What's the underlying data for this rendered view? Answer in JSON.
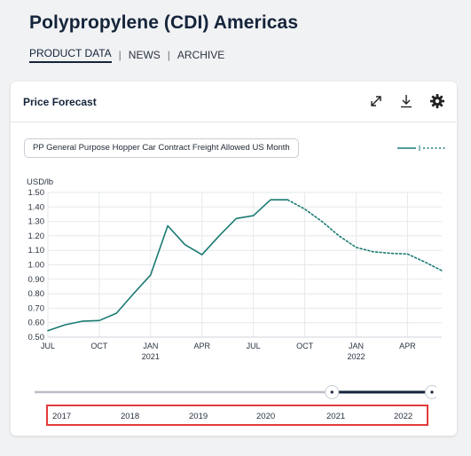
{
  "page": {
    "title": "Polypropylene (CDI) Americas",
    "nav": [
      {
        "label": "PRODUCT DATA",
        "active": true
      },
      {
        "label": "NEWS",
        "active": false
      },
      {
        "label": "ARCHIVE",
        "active": false
      }
    ]
  },
  "card": {
    "title": "Price Forecast",
    "tools": [
      "expand-icon",
      "download-icon",
      "gear-icon"
    ],
    "series_label": "PP General Purpose Hopper Car Contract Freight Allowed US Month"
  },
  "slider": {
    "years": [
      "2017",
      "2018",
      "2019",
      "2020",
      "2021",
      "2022"
    ],
    "selected_fraction_start": 0.745,
    "selected_fraction_end": 1.0
  },
  "chart_data": {
    "type": "line",
    "ylabel": "USD/lb",
    "ylim": [
      0.5,
      1.5
    ],
    "yticks": [
      "0.50",
      "0.60",
      "0.70",
      "0.80",
      "0.90",
      "1.00",
      "1.10",
      "1.20",
      "1.30",
      "1.40",
      "1.50"
    ],
    "xticks": [
      {
        "month": "2020-07",
        "label": "JUL",
        "sub": ""
      },
      {
        "month": "2020-10",
        "label": "OCT",
        "sub": ""
      },
      {
        "month": "2021-01",
        "label": "JAN",
        "sub": "2021"
      },
      {
        "month": "2021-04",
        "label": "APR",
        "sub": ""
      },
      {
        "month": "2021-07",
        "label": "JUL",
        "sub": ""
      },
      {
        "month": "2021-10",
        "label": "OCT",
        "sub": ""
      },
      {
        "month": "2022-01",
        "label": "JAN",
        "sub": "2022"
      },
      {
        "month": "2022-04",
        "label": "APR",
        "sub": ""
      }
    ],
    "x_range": [
      "2020-07",
      "2022-06"
    ],
    "grid": true,
    "color": "#1a7a72",
    "series": [
      {
        "style": "solid",
        "points": [
          [
            "2020-07",
            0.545
          ],
          [
            "2020-08",
            0.585
          ],
          [
            "2020-09",
            0.61
          ],
          [
            "2020-10",
            0.615
          ],
          [
            "2020-11",
            0.665
          ],
          [
            "2020-12",
            0.8
          ],
          [
            "2021-01",
            0.93
          ],
          [
            "2021-02",
            1.27
          ],
          [
            "2021-03",
            1.14
          ],
          [
            "2021-04",
            1.07
          ],
          [
            "2021-05",
            1.2
          ],
          [
            "2021-06",
            1.32
          ],
          [
            "2021-07",
            1.34
          ],
          [
            "2021-08",
            1.45
          ],
          [
            "2021-09",
            1.45
          ]
        ]
      },
      {
        "style": "dotted",
        "points": [
          [
            "2021-09",
            1.45
          ],
          [
            "2021-10",
            1.385
          ],
          [
            "2021-11",
            1.3
          ],
          [
            "2021-12",
            1.2
          ],
          [
            "2022-01",
            1.12
          ],
          [
            "2022-02",
            1.09
          ],
          [
            "2022-03",
            1.08
          ],
          [
            "2022-04",
            1.075
          ],
          [
            "2022-05",
            1.02
          ],
          [
            "2022-06",
            0.96
          ]
        ]
      }
    ]
  }
}
